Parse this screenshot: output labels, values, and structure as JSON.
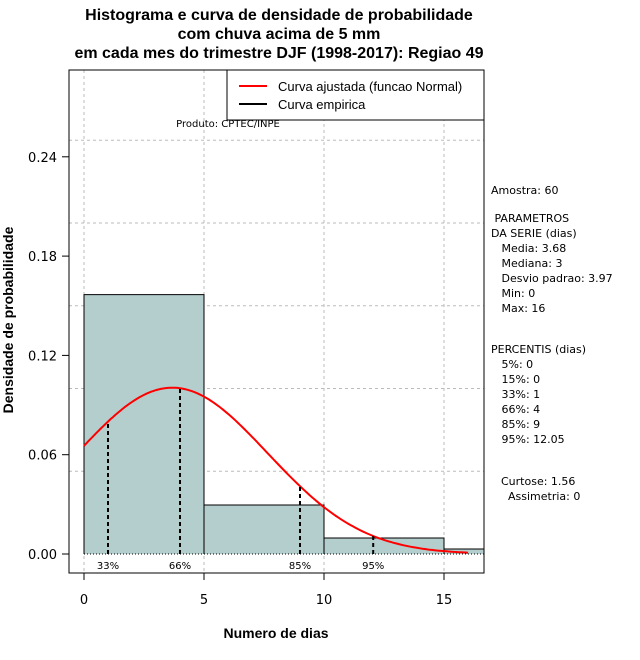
{
  "chart_data": {
    "type": "bar",
    "title": [
      "Histograma e curva de densidade de probabilidade",
      "com chuva acima de 5 mm",
      "em cada mes do trimestre DJF (1998-2017): Regiao 49"
    ],
    "xlabel": "Numero de dias",
    "ylabel": "Densidade de probabilidade",
    "xlim": [
      -0.6,
      16.7
    ],
    "ylim": [
      -0.0115,
      0.3
    ],
    "xticks": [
      "0",
      "5",
      "10",
      "15"
    ],
    "xtick_values": [
      0,
      5,
      10,
      15
    ],
    "yticks": [
      "0.00",
      "0.06",
      "0.12",
      "0.18",
      "0.24"
    ],
    "ytick_values": [
      0,
      0.06,
      0.12,
      0.18,
      0.24
    ],
    "grid_x": [
      0,
      5,
      10,
      15
    ],
    "grid_y": [
      0.05,
      0.1,
      0.15,
      0.2,
      0.25
    ],
    "bins": [
      {
        "from": 0,
        "to": 5,
        "density": 0.1567
      },
      {
        "from": 5,
        "to": 10,
        "density": 0.0296
      },
      {
        "from": 10,
        "to": 15,
        "density": 0.0097
      },
      {
        "from": 15,
        "to": 16.7,
        "density": 0.003
      }
    ],
    "normal_curve": {
      "mean": 3.68,
      "sd": 3.97,
      "from": 0,
      "to": 16
    },
    "percentile_lines": [
      {
        "label": "33%",
        "x": 1
      },
      {
        "label": "66%",
        "x": 4
      },
      {
        "label": "85%",
        "x": 9
      },
      {
        "label": "95%",
        "x": 12.05
      }
    ],
    "legend": [
      {
        "label": "Curva ajustada (funcao Normal)",
        "color": "#ff0000"
      },
      {
        "label": "Curva empirica",
        "color": "#000000"
      }
    ],
    "legend_position": "top-right",
    "bar_color": "#b4cdcd",
    "credit": "Produto: CPTEC/INPE"
  },
  "side_panel": {
    "amostra": "Amostra: 60",
    "parametros": " PARAMETROS\nDA SERIE (dias)\n   Media: 3.68\n   Mediana: 3\n   Desvio padrao: 3.97\n   Min: 0\n   Max: 16",
    "percentis": "PERCENTIS (dias)\n   5%: 0\n   15%: 0\n   33%: 1\n   66%: 4\n   85%: 9\n   95%: 12.05",
    "curtose": "Curtose: 1.56\n  Assimetria: 0"
  }
}
